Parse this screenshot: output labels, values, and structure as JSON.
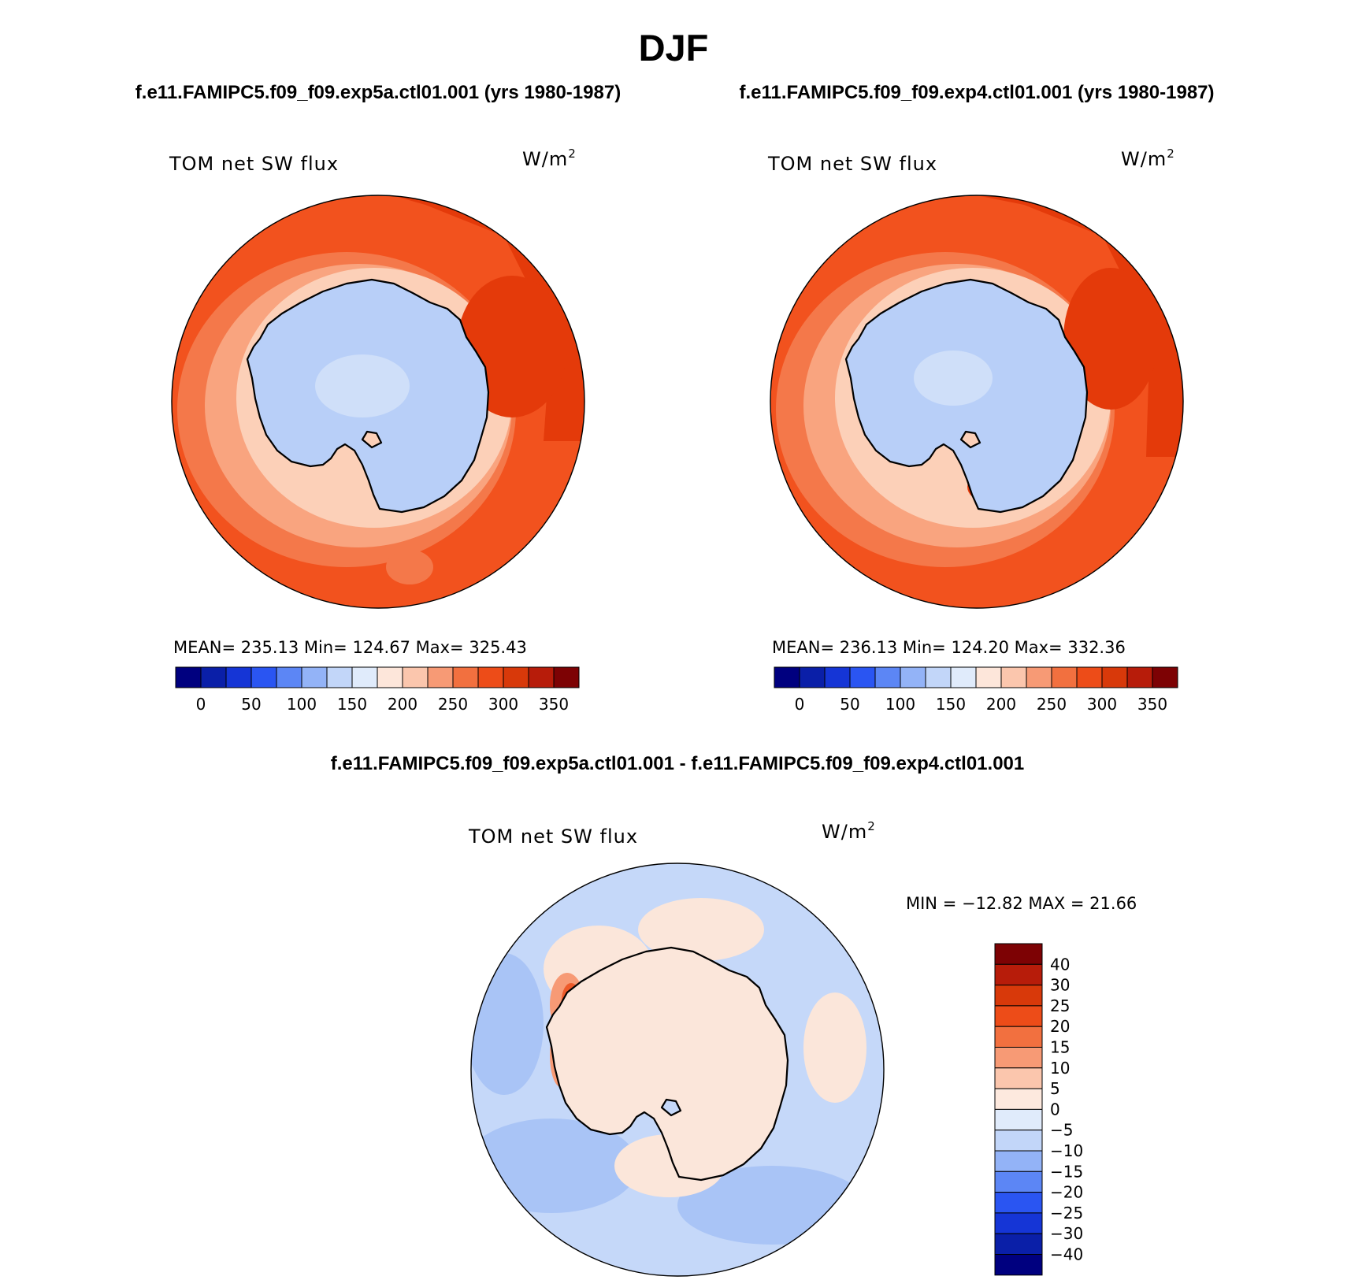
{
  "title": "DJF",
  "top_subtitle_left": "f.e11.FAMIPC5.f09_f09.exp5a.ctl01.001 (yrs 1980-1987)",
  "top_subtitle_right": "f.e11.FAMIPC5.f09_f09.exp4.ctl01.001 (yrs 1980-1987)",
  "diff_subtitle": "f.e11.FAMIPC5.f09_f09.exp5a.ctl01.001 - f.e11.FAMIPC5.f09_f09.exp4.ctl01.001",
  "panels": [
    {
      "variable": "TOM net SW flux",
      "units": "W/m",
      "units_exp": "2",
      "mean_label": "MEAN=",
      "mean": "235.13",
      "min_label": "Min=",
      "min": "124.67",
      "max_label": "Max=",
      "max": "325.43"
    },
    {
      "variable": "TOM net SW flux",
      "units": "W/m",
      "units_exp": "2",
      "mean_label": "MEAN=",
      "mean": "236.13",
      "min_label": "Min=",
      "min": "124.20",
      "max_label": "Max=",
      "max": "332.36"
    },
    {
      "variable": "TOM net SW flux",
      "units": "W/m",
      "units_exp": "2",
      "minmax_text": "MIN = −12.82  MAX =   21.66"
    }
  ],
  "abs_colorbar": {
    "colors": [
      "#00007f",
      "#0a1fa8",
      "#1535d6",
      "#2a55f2",
      "#5c86f5",
      "#93b3f7",
      "#c2d6f9",
      "#e0ebfb",
      "#fde6da",
      "#fbc6ad",
      "#f79a75",
      "#f2703f",
      "#ed4c18",
      "#d8390a",
      "#b71c0a",
      "#7d0204"
    ],
    "tick_labels": [
      "0",
      "50",
      "100",
      "150",
      "200",
      "250",
      "300",
      "350"
    ]
  },
  "diff_colorbar": {
    "colors": [
      "#00007f",
      "#0a1fa8",
      "#1535d6",
      "#2a55f2",
      "#5c86f5",
      "#93b3f7",
      "#c2d6f9",
      "#e0ebfb",
      "#fde9de",
      "#fbc6ad",
      "#f79a75",
      "#f2703f",
      "#ed4c18",
      "#d8390a",
      "#b71c0a",
      "#7d0204"
    ],
    "tick_labels": [
      "−40",
      "−30",
      "−25",
      "−20",
      "−15",
      "−10",
      "−5",
      "0",
      "5",
      "10",
      "15",
      "20",
      "25",
      "30",
      "40"
    ]
  },
  "map_colors": {
    "ice": "#b8cff8",
    "ice_light": "#cfdff9",
    "ocean_main": "#f2521e",
    "ocean_dark": "#e43a0a",
    "ocean_mid": "#f4784a",
    "ocean_light": "#f9a47f",
    "ocean_pale": "#fcd0b8",
    "diff_ocean": "#c5d8f9",
    "diff_ocean_mid": "#a9c4f6",
    "diff_land": "#fbe6da",
    "diff_warm": "#f79a75",
    "diff_hot": "#ed5a2a"
  }
}
